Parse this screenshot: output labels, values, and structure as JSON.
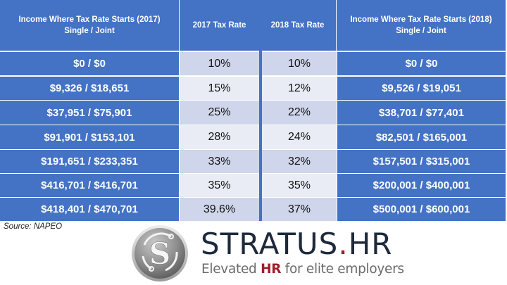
{
  "table": {
    "headers": {
      "income_2017": "Income Where Tax Rate Starts (2017)\nSingle / Joint",
      "rate_2017": "2017 Tax Rate",
      "rate_2018": "2018 Tax Rate",
      "income_2018": "Income Where Tax Rate Starts (2018)\nSingle / Joint"
    },
    "rows": [
      {
        "income_2017": "$0 / $0",
        "rate_2017": "10%",
        "rate_2018": "10%",
        "income_2018": "$0 / $0"
      },
      {
        "income_2017": "$9,326 / $18,651",
        "rate_2017": "15%",
        "rate_2018": "12%",
        "income_2018": "$9,526 / $19,051"
      },
      {
        "income_2017": "$37,951 / $75,901",
        "rate_2017": "25%",
        "rate_2018": "22%",
        "income_2018": "$38,701 / $77,401"
      },
      {
        "income_2017": "$91,901 / $153,101",
        "rate_2017": "28%",
        "rate_2018": "24%",
        "income_2018": "$82,501 / $165,001"
      },
      {
        "income_2017": "$191,651 / $233,351",
        "rate_2017": "33%",
        "rate_2018": "32%",
        "income_2018": "$157,501 / $315,001"
      },
      {
        "income_2017": "$416,701 / $416,701",
        "rate_2017": "35%",
        "rate_2018": "35%",
        "income_2018": "$200,001 / $400,001"
      },
      {
        "income_2017": "$418,401 / $470,701",
        "rate_2017": "39.6%",
        "rate_2018": "37%",
        "income_2018": "$500,001 / $600,001"
      }
    ]
  },
  "source": "Source: NAPEO",
  "logo": {
    "name_main": "STRATUS",
    "name_dot": ".",
    "name_suffix": "HR",
    "tagline_pre": "Elevated ",
    "tagline_hr": "HR",
    "tagline_post": " for elite employers",
    "badge_letter": "S"
  },
  "colors": {
    "header_blue": "#4472c4",
    "rate_band_dark": "#cfd5ea",
    "rate_band_light": "#e9ebf5",
    "brand_red": "#a11c2a",
    "brand_navy": "#1e2a3c"
  }
}
